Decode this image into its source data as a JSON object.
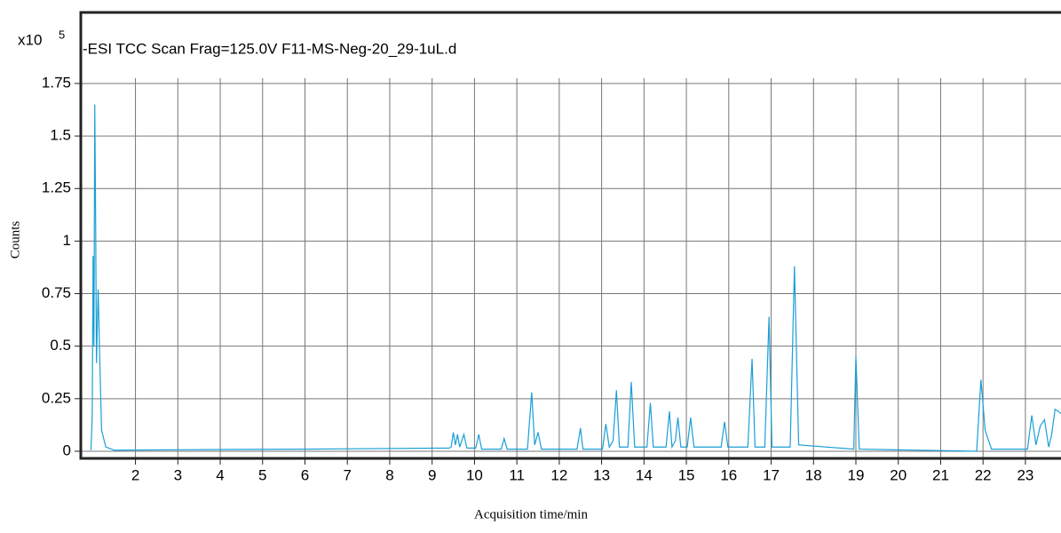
{
  "chart_data": {
    "type": "line",
    "title": "-ESI TCC Scan Frag=125.0V F11-MS-Neg-20_29-1uL.d",
    "y_multiplier": "x10",
    "y_multiplier_exponent": "5",
    "y_label": "Counts",
    "x_label": "Acquisition time/min",
    "xlim": [
      0.71,
      23.84
    ],
    "ylim": [
      -0.034,
      2.088
    ],
    "xticks": [
      2,
      3,
      4,
      5,
      6,
      7,
      8,
      9,
      10,
      11,
      12,
      13,
      14,
      15,
      16,
      17,
      18,
      19,
      20,
      21,
      22,
      23
    ],
    "yticks": [
      0,
      0.25,
      0.5,
      0.75,
      1,
      1.25,
      1.5,
      1.75
    ],
    "grid": true,
    "series": [
      {
        "color": "#1a9fd6",
        "x": [
          0.95,
          0.98,
          1.0,
          1.02,
          1.04,
          1.06,
          1.08,
          1.1,
          1.12,
          1.15,
          1.2,
          1.3,
          1.5,
          3,
          6,
          9.4,
          9.45,
          9.5,
          9.55,
          9.6,
          9.65,
          9.7,
          9.75,
          9.82,
          10.03,
          10.1,
          10.17,
          10.63,
          10.7,
          10.77,
          11.25,
          11.35,
          11.42,
          11.5,
          11.58,
          12.42,
          12.5,
          12.56,
          13.02,
          13.1,
          13.18,
          13.27,
          13.35,
          13.42,
          13.62,
          13.7,
          13.78,
          14.07,
          14.15,
          14.22,
          14.52,
          14.6,
          14.66,
          14.74,
          14.8,
          14.87,
          15.02,
          15.1,
          15.18,
          15.82,
          15.9,
          15.98,
          16.45,
          16.55,
          16.62,
          16.85,
          16.95,
          17.02,
          17.45,
          17.55,
          17.65,
          18.95,
          19.0,
          19.08,
          21.85,
          21.95,
          22.05,
          22.2,
          23.05,
          23.15,
          23.25,
          23.35,
          23.45,
          23.55,
          23.62,
          23.7,
          23.84
        ],
        "values": [
          0.005,
          0.17,
          0.93,
          0.5,
          1.65,
          1.1,
          0.42,
          0.6,
          0.77,
          0.5,
          0.1,
          0.02,
          0.005,
          0.007,
          0.01,
          0.015,
          0.02,
          0.09,
          0.03,
          0.08,
          0.02,
          0.05,
          0.08,
          0.015,
          0.015,
          0.08,
          0.01,
          0.01,
          0.06,
          0.01,
          0.01,
          0.28,
          0.03,
          0.09,
          0.01,
          0.01,
          0.11,
          0.01,
          0.01,
          0.13,
          0.02,
          0.05,
          0.29,
          0.02,
          0.02,
          0.33,
          0.02,
          0.02,
          0.23,
          0.02,
          0.02,
          0.19,
          0.02,
          0.05,
          0.16,
          0.02,
          0.02,
          0.16,
          0.02,
          0.02,
          0.14,
          0.02,
          0.02,
          0.44,
          0.02,
          0.02,
          0.64,
          0.02,
          0.02,
          0.88,
          0.03,
          0.01,
          0.45,
          0.01,
          0.0,
          0.34,
          0.1,
          0.01,
          0.01,
          0.17,
          0.03,
          0.12,
          0.15,
          0.02,
          0.08,
          0.2,
          0.18
        ]
      }
    ]
  }
}
